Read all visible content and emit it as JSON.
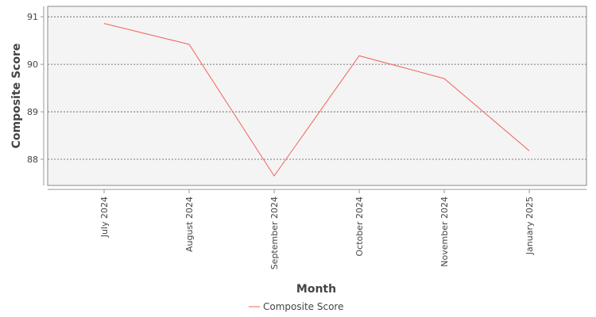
{
  "chart_data": {
    "type": "line",
    "title": "",
    "xlabel": "Month",
    "ylabel": "Composite Score",
    "categories": [
      "July 2024",
      "August 2024",
      "September 2024",
      "October 2024",
      "November 2024",
      "January 2025"
    ],
    "series": [
      {
        "name": "Composite Score",
        "values": [
          90.86,
          90.42,
          87.65,
          90.18,
          89.7,
          88.18
        ],
        "color": "#f0645a"
      }
    ],
    "ylim": [
      87.45,
      91.22
    ],
    "yticks": [
      88,
      89,
      90,
      91
    ],
    "grid": true,
    "legend_position": "bottom-center",
    "plot_background": "#f4f4f4"
  }
}
